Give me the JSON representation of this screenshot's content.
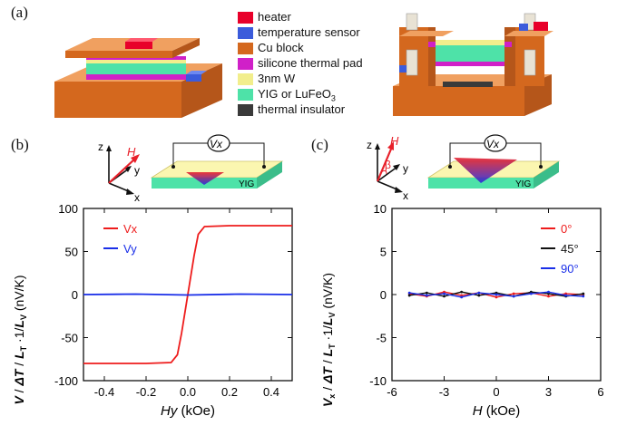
{
  "figure": {
    "panel_a": "(a)",
    "panel_b": "(b)",
    "panel_c": "(c)",
    "materials_legend": [
      {
        "label": "heater",
        "color": "#e8002a"
      },
      {
        "label": "temperature sensor",
        "color": "#3b5bdb"
      },
      {
        "label": "Cu block",
        "color": "#d4681e"
      },
      {
        "label": "silicone thermal pad",
        "color": "#d020c8"
      },
      {
        "label": "3nm W",
        "color": "#f2ee8c"
      },
      {
        "label": "YIG or LuFeO3",
        "color": "#4ee2a8"
      },
      {
        "label": "thermal insulator",
        "color": "#3a3a3a"
      }
    ],
    "schematic_b": {
      "axis_z": "z",
      "axis_y": "y",
      "axis_x": "x",
      "field": "H",
      "voltage": "Vx",
      "substrate": "YIG"
    },
    "schematic_c": {
      "axis_z": "z",
      "axis_y": "y",
      "axis_x": "x",
      "field": "H",
      "angle": "β",
      "voltage": "Vx",
      "substrate": "YIG"
    }
  },
  "chart_data": [
    {
      "type": "line",
      "panel": "(b)",
      "xlabel": "Hy (kOe)",
      "ylabel": "V / (ΔT/LT) / LV (nV/K)",
      "xlim": [
        -0.5,
        0.5
      ],
      "ylim": [
        -100,
        100
      ],
      "xticks": [
        "-0.4",
        "-0.2",
        "0.0",
        "0.2",
        "0.4"
      ],
      "xtick_values": [
        -0.4,
        -0.2,
        0.0,
        0.2,
        0.4
      ],
      "yticks": [
        "100",
        "50",
        "0",
        "-50",
        "-100"
      ],
      "ytick_values": [
        100,
        50,
        0,
        -50,
        -100
      ],
      "legend_position": "top-left",
      "series": [
        {
          "name": "Vx",
          "color": "#ee1c1c",
          "x": [
            -0.5,
            -0.2,
            -0.08,
            -0.05,
            -0.03,
            -0.01,
            0.01,
            0.03,
            0.05,
            0.08,
            0.2,
            0.5
          ],
          "y": [
            -80,
            -80,
            -79,
            -70,
            -45,
            -15,
            15,
            45,
            70,
            79,
            80,
            80
          ]
        },
        {
          "name": "Vy",
          "color": "#1a2fe8",
          "x": [
            -0.5,
            -0.25,
            0.0,
            0.25,
            0.5
          ],
          "y": [
            0,
            0.5,
            -0.5,
            0.5,
            0
          ]
        }
      ]
    },
    {
      "type": "line",
      "panel": "(c)",
      "xlabel": "H (kOe)",
      "ylabel": "Vx / (ΔT/LT) / LV (nV/K)",
      "xlim": [
        -6,
        6
      ],
      "ylim": [
        -10,
        10
      ],
      "xticks": [
        "-6",
        "-3",
        "0",
        "3",
        "6"
      ],
      "xtick_values": [
        -6,
        -3,
        0,
        3,
        6
      ],
      "yticks": [
        "10",
        "5",
        "0",
        "-5",
        "-10"
      ],
      "ytick_values": [
        10,
        5,
        0,
        -5,
        -10
      ],
      "legend_position": "top-right",
      "series": [
        {
          "name": "0°",
          "color": "#ee1c1c",
          "x": [
            -5,
            -4,
            -3,
            -2,
            -1,
            0,
            1,
            2,
            3,
            4,
            5
          ],
          "y": [
            0.1,
            -0.2,
            0.3,
            -0.1,
            0.2,
            -0.3,
            0.1,
            0.2,
            -0.2,
            0.1,
            0.0
          ]
        },
        {
          "name": "45°",
          "color": "#111111",
          "x": [
            -5,
            -4,
            -3,
            -2,
            -1,
            0,
            1,
            2,
            3,
            4,
            5
          ],
          "y": [
            -0.1,
            0.2,
            -0.2,
            0.3,
            -0.1,
            0.2,
            -0.2,
            0.3,
            0.1,
            -0.2,
            0.1
          ]
        },
        {
          "name": "90°",
          "color": "#1a2fe8",
          "x": [
            -5,
            -4,
            -3,
            -2,
            -1,
            0,
            1,
            2,
            3,
            4,
            5
          ],
          "y": [
            0.2,
            -0.1,
            0.1,
            -0.3,
            0.2,
            0.0,
            -0.2,
            0.1,
            0.3,
            -0.1,
            -0.2
          ]
        }
      ]
    }
  ]
}
